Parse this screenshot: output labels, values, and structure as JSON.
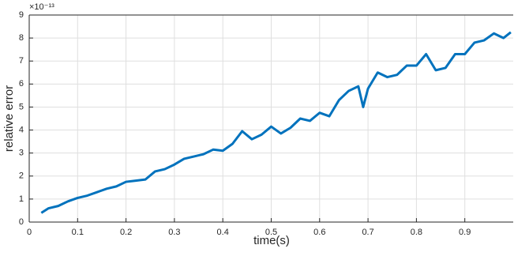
{
  "chart_data": {
    "type": "line",
    "xlabel": "time(s)",
    "ylabel": "relative error",
    "y_multiplier": "×10⁻¹³",
    "x": [
      0.025,
      0.04,
      0.06,
      0.08,
      0.1,
      0.12,
      0.14,
      0.16,
      0.18,
      0.2,
      0.22,
      0.24,
      0.26,
      0.28,
      0.3,
      0.32,
      0.34,
      0.36,
      0.38,
      0.4,
      0.42,
      0.44,
      0.46,
      0.48,
      0.5,
      0.52,
      0.54,
      0.56,
      0.58,
      0.6,
      0.62,
      0.64,
      0.66,
      0.68,
      0.69,
      0.7,
      0.72,
      0.74,
      0.76,
      0.78,
      0.8,
      0.82,
      0.84,
      0.86,
      0.88,
      0.9,
      0.92,
      0.94,
      0.96,
      0.98,
      0.995
    ],
    "series": [
      {
        "color": "#0072bd",
        "values": [
          0.4,
          0.6,
          0.7,
          0.9,
          1.05,
          1.15,
          1.3,
          1.45,
          1.55,
          1.75,
          1.8,
          1.85,
          2.2,
          2.3,
          2.5,
          2.75,
          2.85,
          2.95,
          3.15,
          3.1,
          3.4,
          3.95,
          3.6,
          3.8,
          4.15,
          3.85,
          4.1,
          4.5,
          4.4,
          4.75,
          4.6,
          5.3,
          5.7,
          5.9,
          5.0,
          5.8,
          6.5,
          6.3,
          6.4,
          6.8,
          6.8,
          7.3,
          6.6,
          6.7,
          7.3,
          7.3,
          7.8,
          7.9,
          8.2,
          8.0,
          8.25
        ]
      }
    ],
    "xlim": [
      0,
      1
    ],
    "xticks": [
      0,
      0.1,
      0.2,
      0.3,
      0.4,
      0.5,
      0.6,
      0.7,
      0.8,
      0.9
    ],
    "ylim": [
      0,
      9
    ],
    "yticks": [
      0,
      1,
      2,
      3,
      4,
      5,
      6,
      7,
      8,
      9
    ],
    "grid": true
  }
}
